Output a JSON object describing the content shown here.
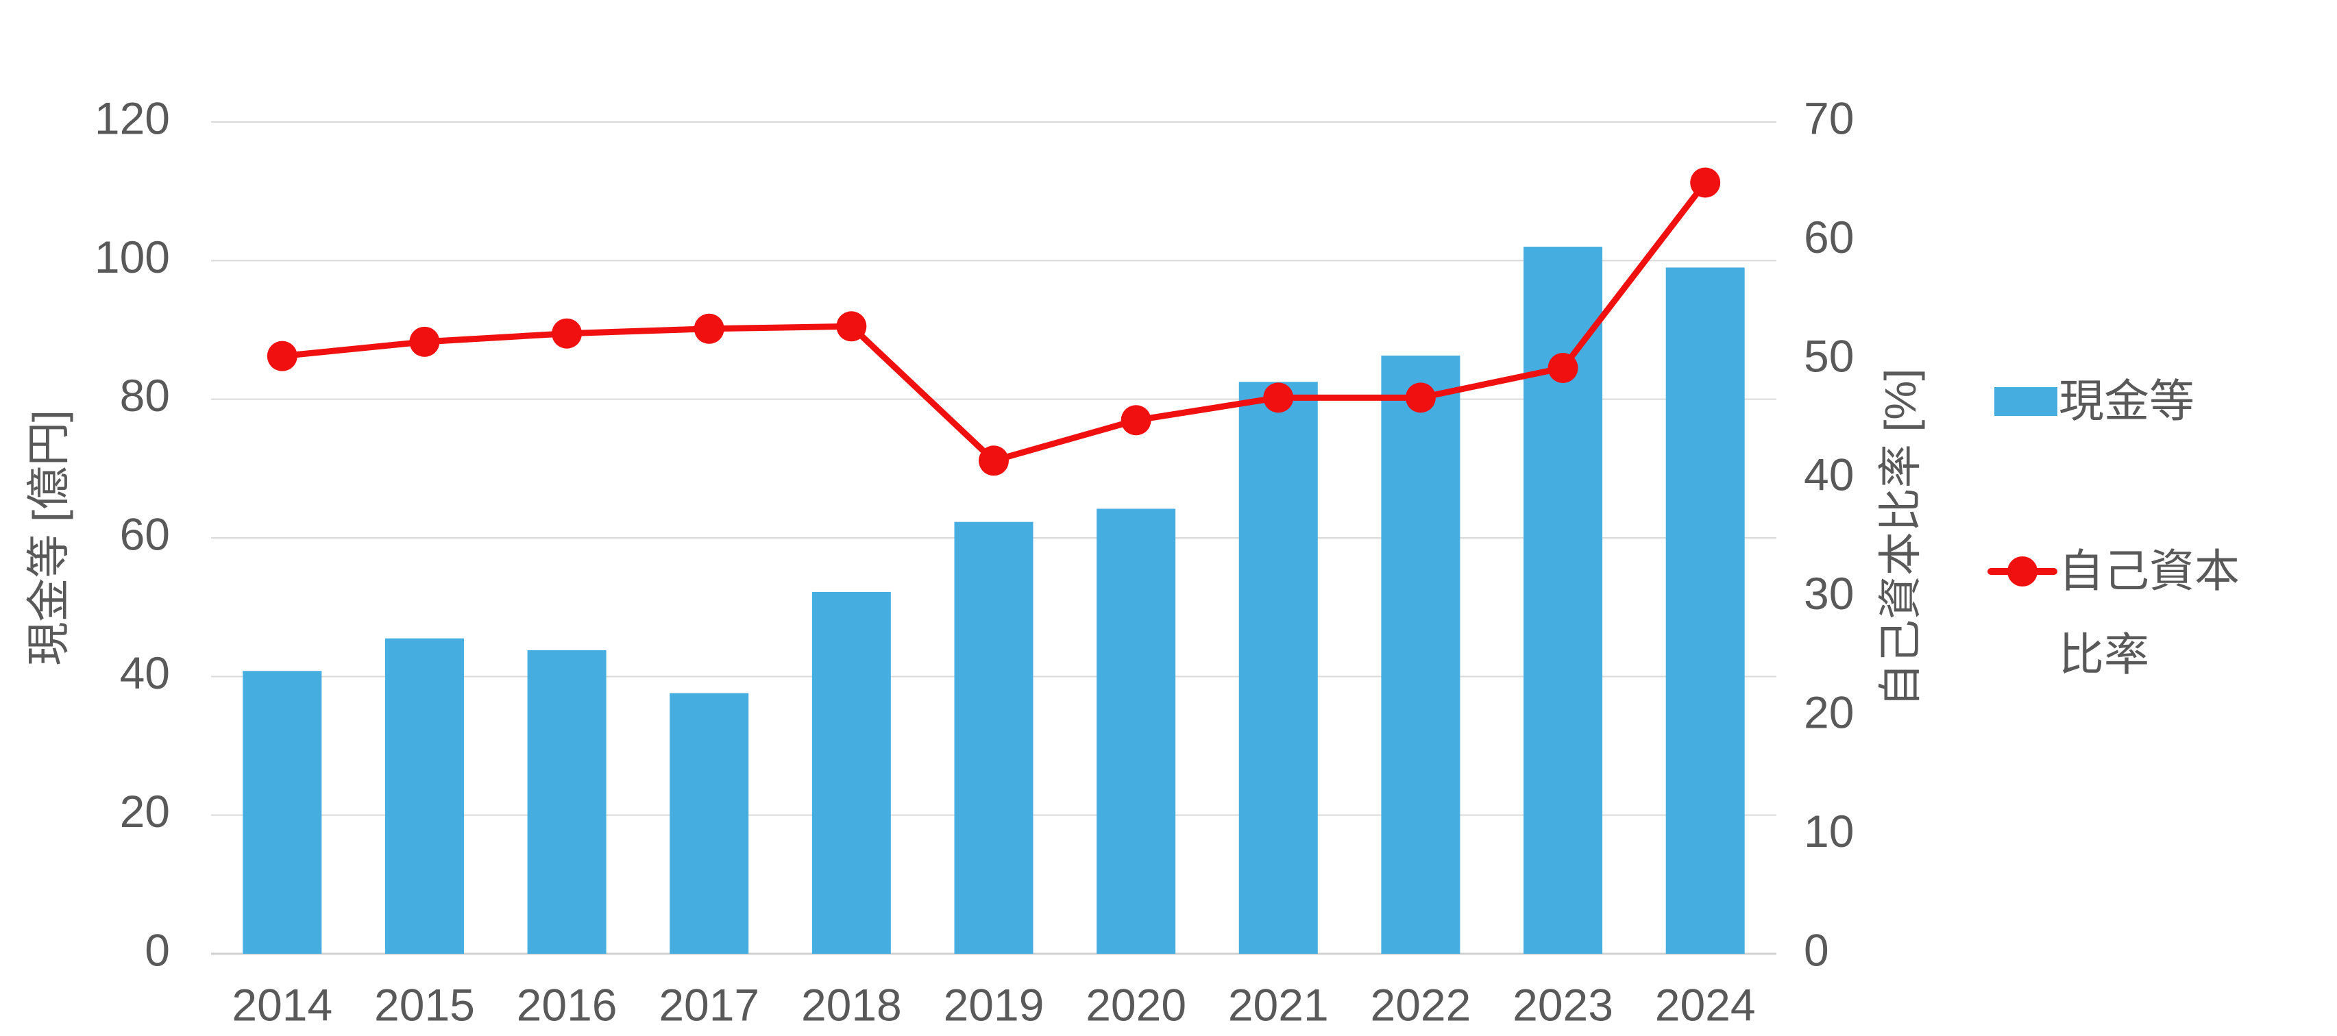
{
  "chart_data": {
    "type": "bar",
    "categories": [
      "2014",
      "2015",
      "2016",
      "2017",
      "2018",
      "2019",
      "2020",
      "2021",
      "2022",
      "2023",
      "2024"
    ],
    "series": [
      {
        "name": "現金等",
        "kind": "bar",
        "axis": "left",
        "color": "#45ADE0",
        "values": [
          40.8,
          45.5,
          43.8,
          37.6,
          52.2,
          62.3,
          64.2,
          82.5,
          86.3,
          102.0,
          99.0
        ]
      },
      {
        "name_lines": [
          "自己資本",
          "比率"
        ],
        "kind": "line",
        "axis": "right",
        "color": "#F01010",
        "values": [
          50.3,
          51.5,
          52.2,
          52.6,
          52.8,
          41.5,
          44.9,
          46.8,
          46.8,
          49.3,
          64.9
        ]
      }
    ],
    "ylabel_left": "現金等 [億円]",
    "ylabel_right": "自己資本比率 [%]",
    "ylim_left": [
      0,
      120
    ],
    "yticks_left": [
      "0",
      "20",
      "40",
      "60",
      "80",
      "100",
      "120"
    ],
    "ylim_right": [
      0,
      70
    ],
    "yticks_right": [
      "0",
      "10",
      "20",
      "30",
      "40",
      "50",
      "60",
      "70"
    ],
    "grid": true,
    "legend_position": "right"
  }
}
